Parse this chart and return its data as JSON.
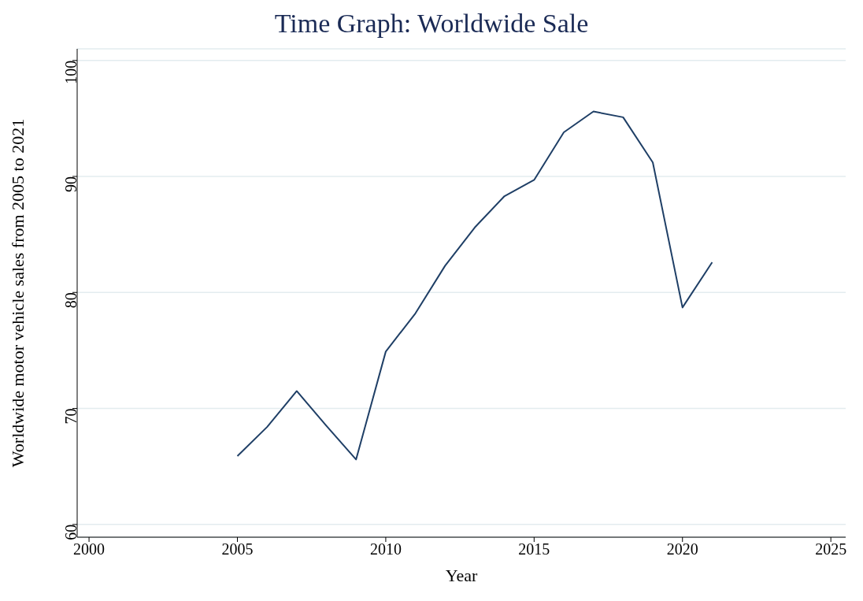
{
  "chart_data": {
    "type": "line",
    "title": "Time Graph: Worldwide Sale",
    "xlabel": "Year",
    "ylabel": "Worldwide motor vehicle sales from 2005 to 2021",
    "x": [
      2005,
      2006,
      2007,
      2008,
      2009,
      2010,
      2011,
      2012,
      2013,
      2014,
      2015,
      2016,
      2017,
      2018,
      2019,
      2020,
      2021
    ],
    "series": [
      {
        "color": "#1f3f66",
        "values": [
          65.9,
          68.4,
          71.5,
          68.5,
          65.6,
          74.9,
          78.2,
          82.3,
          85.6,
          88.3,
          89.7,
          93.8,
          95.6,
          95.1,
          91.2,
          78.7,
          82.6
        ]
      }
    ],
    "xlim": [
      1999.6,
      2025.5
    ],
    "xticks": [
      2000,
      2005,
      2010,
      2015,
      2020,
      2025
    ],
    "ylim": [
      58.9,
      101
    ],
    "yticks": [
      60,
      70,
      80,
      90,
      100
    ],
    "grid": "y",
    "marker": "none",
    "line_style": "solid"
  }
}
